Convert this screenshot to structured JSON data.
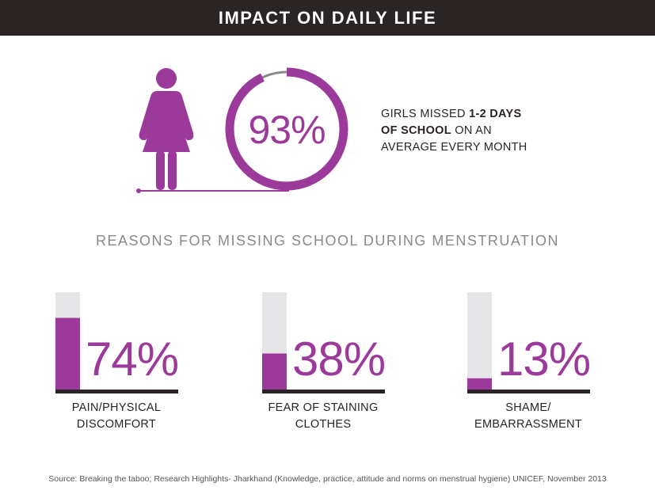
{
  "header": {
    "title": "IMPACT ON DAILY LIFE"
  },
  "stat": {
    "percent": 93,
    "percent_label": "93%",
    "text_pre": "GIRLS MISSED ",
    "text_bold1": "1-2 DAYS",
    "text_bold2": "OF SCHOOL",
    "text_post1": " ON AN",
    "text_line3": "AVERAGE EVERY MONTH"
  },
  "reasons_title": "REASONS FOR MISSING SCHOOL DURING MENSTRUATION",
  "chart_data": {
    "type": "bar",
    "categories": [
      "PAIN/PHYSICAL DISCOMFORT",
      "FEAR OF STAINING CLOTHES",
      "SHAME/ EMBARRASSMENT"
    ],
    "values": [
      74,
      38,
      13
    ],
    "value_labels": [
      "74%",
      "38%",
      "13%"
    ],
    "label_lines": [
      [
        "PAIN/PHYSICAL",
        "DISCOMFORT"
      ],
      [
        "FEAR OF STAINING",
        "CLOTHES"
      ],
      [
        "SHAME/",
        "EMBARRASSMENT"
      ]
    ],
    "ylim": [
      0,
      100
    ],
    "colors": {
      "fill": "#9b3a9b",
      "track": "#e6e6e8",
      "baseline": "#2a2424",
      "ring_rest": "#8a8a8a"
    }
  },
  "source": "Source: Breaking the taboo; Research Highlights- Jharkhand (Knowledge, practice, attitude and norms on menstrual hygiene) UNICEF, November 2013"
}
